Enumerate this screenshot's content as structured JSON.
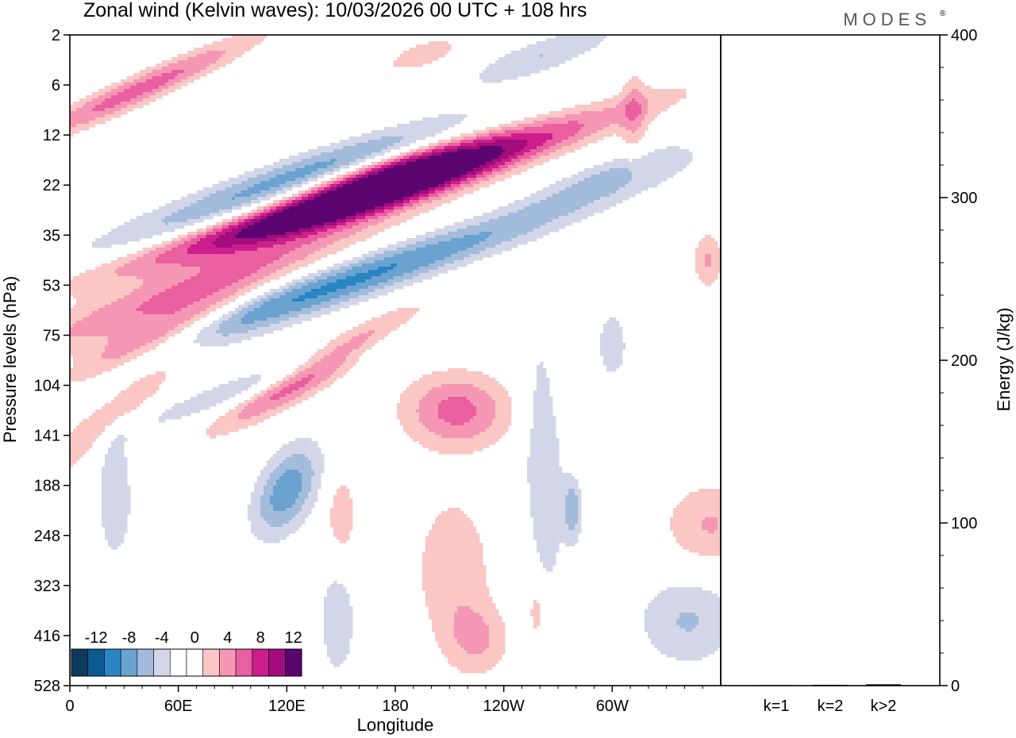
{
  "chart_data": {
    "type": "heatmap",
    "title": "Zonal wind (Kelvin waves):  10/03/2026  00 UTC  + 108 hrs",
    "brand": "MODES",
    "brand_mark": "®",
    "xlabel": "Longitude",
    "ylabel": "Pressure levels (hPa)",
    "y2label": "Energy (J/kg)",
    "x_ticks": [
      "0",
      "60E",
      "120E",
      "180",
      "120W",
      "60W"
    ],
    "x_tick_degrees": [
      0,
      60,
      120,
      180,
      240,
      300
    ],
    "x_range_degrees": [
      0,
      360
    ],
    "y_levels": [
      "2",
      "6",
      "12",
      "22",
      "35",
      "53",
      "75",
      "104",
      "141",
      "188",
      "248",
      "323",
      "416",
      "528"
    ],
    "y2_ticks": [
      "0",
      "100",
      "200",
      "300",
      "400"
    ],
    "y2_range": [
      0,
      400
    ],
    "colorbar": {
      "labels": [
        "-12",
        "-8",
        "-4",
        "0",
        "4",
        "8",
        "12"
      ],
      "colors": [
        "#0f3a5e",
        "#0b5a92",
        "#2a86c3",
        "#6aa3d0",
        "#a3bcdc",
        "#d3d6e8",
        "#ffffff",
        "#ffffff",
        "#fac7c4",
        "#f597b4",
        "#ea5f9f",
        "#cc1e8c",
        "#a30d7e",
        "#5c0470"
      ]
    },
    "blobs": [
      {
        "sign": 1,
        "lon": 155,
        "lev": 3.2,
        "len": 190,
        "wid": 0.55,
        "slope": -0.011,
        "amp": 13.5
      },
      {
        "sign": 1,
        "lon": 180,
        "lev": 2.6,
        "len": 75,
        "wid": 0.4,
        "slope": -0.01,
        "amp": 6
      },
      {
        "sign": 1,
        "lon": 72,
        "lev": 5.0,
        "len": 150,
        "wid": 0.7,
        "slope": -0.013,
        "amp": 6.5
      },
      {
        "sign": 1,
        "lon": 38,
        "lev": 6.2,
        "len": 70,
        "wid": 0.55,
        "slope": -0.016,
        "amp": 8.5
      },
      {
        "sign": 1,
        "lon": 10,
        "lev": 8.0,
        "len": 80,
        "wid": 0.6,
        "slope": -0.03,
        "amp": 4.5
      },
      {
        "sign": 1,
        "lon": 38,
        "lev": 1.1,
        "len": 90,
        "wid": 0.45,
        "slope": -0.016,
        "amp": 7
      },
      {
        "sign": 1,
        "lon": 165,
        "lev": 3.3,
        "len": 110,
        "wid": 0.5,
        "slope": -0.011,
        "amp": 8
      },
      {
        "sign": 1,
        "lon": 136,
        "lev": 6.7,
        "len": 70,
        "wid": 0.55,
        "slope": -0.02,
        "amp": 9.5
      },
      {
        "sign": 1,
        "lon": 214,
        "lev": 7.5,
        "len": 42,
        "wid": 1.05,
        "slope": 0.0,
        "amp": 6.8
      },
      {
        "sign": 1,
        "lon": 212,
        "lev": 10.7,
        "len": 30,
        "wid": 2.2,
        "slope": 0.0,
        "amp": 3.8
      },
      {
        "sign": 1,
        "lon": 226,
        "lev": 12.1,
        "len": 24,
        "wid": 1.0,
        "slope": 0.0,
        "amp": 3.8
      },
      {
        "sign": 1,
        "lon": 150,
        "lev": 9.6,
        "len": 12,
        "wid": 1.3,
        "slope": 0.0,
        "amp": 3.6
      },
      {
        "sign": 1,
        "lon": 354,
        "lev": 9.8,
        "len": 36,
        "wid": 1.2,
        "slope": 0.0,
        "amp": 4.2
      },
      {
        "sign": 1,
        "lon": 353,
        "lev": 4.5,
        "len": 12,
        "wid": 0.8,
        "slope": 0.0,
        "amp": 4.2
      },
      {
        "sign": 1,
        "lon": 312,
        "lev": 1.6,
        "len": 10,
        "wid": 1.3,
        "slope": 0.0,
        "amp": 3.5
      },
      {
        "sign": 1,
        "lon": 258,
        "lev": 11.5,
        "len": 6,
        "wid": 0.8,
        "slope": 0.0,
        "amp": 3.4
      },
      {
        "sign": 1,
        "lon": 195,
        "lev": 0.4,
        "len": 30,
        "wid": 0.4,
        "slope": -0.01,
        "amp": 3.5
      },
      {
        "sign": -1,
        "lon": 148,
        "lev": 5.0,
        "len": 200,
        "wid": 0.6,
        "slope": -0.012,
        "amp": 8.5
      },
      {
        "sign": -1,
        "lon": 120,
        "lev": 9.1,
        "len": 26,
        "wid": 1.15,
        "slope": -0.022,
        "amp": 7.5
      },
      {
        "sign": -1,
        "lon": 90,
        "lev": 3.5,
        "len": 140,
        "wid": 0.7,
        "slope": -0.012,
        "amp": 5.2
      },
      {
        "sign": -1,
        "lon": 140,
        "lev": 2.6,
        "len": 110,
        "wid": 0.5,
        "slope": -0.012,
        "amp": 4.2
      },
      {
        "sign": -1,
        "lon": 128,
        "lev": 6.7,
        "len": 130,
        "wid": 0.45,
        "slope": -0.012,
        "amp": 4.4
      },
      {
        "sign": -1,
        "lon": 262,
        "lev": 8.6,
        "len": 16,
        "wid": 3.6,
        "slope": 0.06,
        "amp": 3.9
      },
      {
        "sign": -1,
        "lon": 278,
        "lev": 9.5,
        "len": 7,
        "wid": 0.9,
        "slope": 0.0,
        "amp": 5.5
      },
      {
        "sign": -1,
        "lon": 342,
        "lev": 11.7,
        "len": 40,
        "wid": 1.3,
        "slope": 0.0,
        "amp": 4.2
      },
      {
        "sign": -1,
        "lon": 148,
        "lev": 11.7,
        "len": 14,
        "wid": 1.6,
        "slope": 0.0,
        "amp": 3.8
      },
      {
        "sign": -1,
        "lon": 25,
        "lev": 9.2,
        "len": 14,
        "wid": 1.9,
        "slope": 0.0,
        "amp": 3.8
      },
      {
        "sign": -1,
        "lon": 262,
        "lev": 0.4,
        "len": 60,
        "wid": 0.5,
        "slope": -0.012,
        "amp": 4.0
      },
      {
        "sign": -1,
        "lon": 300,
        "lev": 2.8,
        "len": 60,
        "wid": 0.5,
        "slope": -0.012,
        "amp": 3.8
      },
      {
        "sign": -1,
        "lon": 300,
        "lev": 6.2,
        "len": 12,
        "wid": 1.0,
        "slope": 0.0,
        "amp": 3.6
      }
    ],
    "energy_bars": [
      {
        "label": "k=1",
        "value": 0.3
      },
      {
        "label": "k=2",
        "value": 0.5
      },
      {
        "label": "k>2",
        "value": 0.8
      }
    ]
  }
}
